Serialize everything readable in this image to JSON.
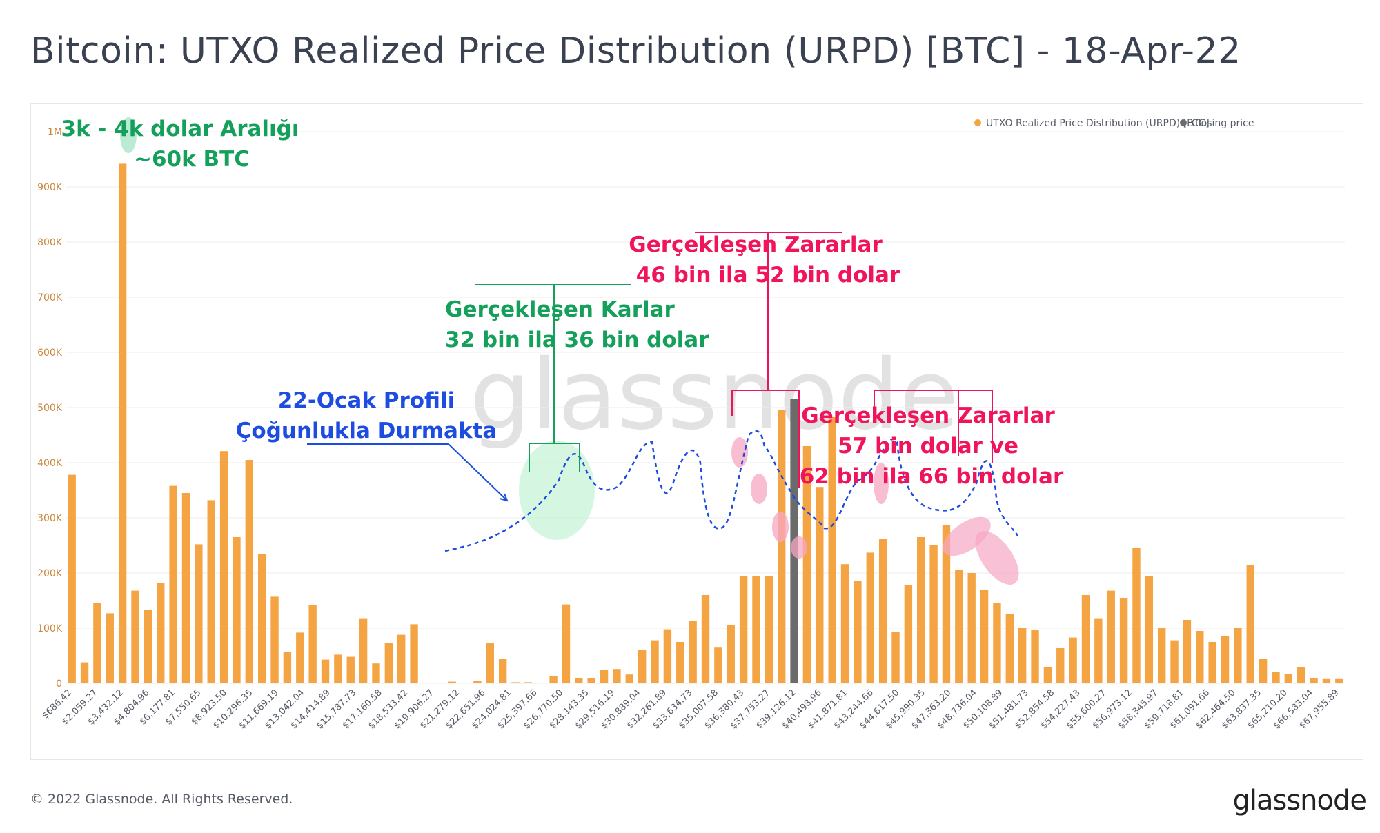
{
  "header": {
    "title": "Bitcoin: UTXO Realized Price Distribution (URPD) [BTC] - 18-Apr-22"
  },
  "footer": {
    "copyright": "© 2022 Glassnode. All Rights Reserved.",
    "logo_text": "glassnode"
  },
  "watermark": "glassnode",
  "colors": {
    "bar": "#f5a443",
    "closing": "#6b6b6b",
    "axis_text": "#c9873a",
    "green": "#14a05a",
    "pink": "#f0145a",
    "blue": "#1c4de0",
    "dashed": "#1c4de0"
  },
  "legend": {
    "items": [
      {
        "label": "UTXO Realized Price Distribution (URPD) [BTC]",
        "color": "#f5a443"
      },
      {
        "label": "Closing price",
        "color": "#6b6b6b"
      }
    ]
  },
  "annotations": {
    "a1": {
      "line1": "3k - 4k dolar Aralığı",
      "line2": "~60k BTC"
    },
    "a2": {
      "line1": "Gerçekleşen Karlar",
      "line2": "32 bin ila 36 bin dolar"
    },
    "a3": {
      "line1": "Gerçekleşen Zararlar",
      "line2": "46 bin ila 52 bin dolar"
    },
    "a4": {
      "line1": "Gerçekleşen Zararlar",
      "line2": "57 bin dolar ve",
      "line3": "62 bin ila 66 bin dolar"
    },
    "a5": {
      "line1": "22-Ocak Profili",
      "line2": "Çoğunlukla Durmakta"
    }
  },
  "chart_data": {
    "type": "bar",
    "ylim": [
      0,
      1000000
    ],
    "y_ticks": [
      "0",
      "100K",
      "200K",
      "300K",
      "400K",
      "500K",
      "600K",
      "700K",
      "800K",
      "900K",
      "1M"
    ],
    "x_tick_labels": [
      "$686.42",
      "$2,059.27",
      "$3,432.12",
      "$4,804.96",
      "$6,177.81",
      "$7,550.65",
      "$8,923.50",
      "$10,296.35",
      "$11,669.19",
      "$13,042.04",
      "$14,414.89",
      "$15,787.73",
      "$17,160.58",
      "$18,533.42",
      "$19,906.27",
      "$21,279.12",
      "$22,651.96",
      "$24,024.81",
      "$25,397.66",
      "$26,770.50",
      "$28,143.35",
      "$29,516.19",
      "$30,889.04",
      "$32,261.89",
      "$33,634.73",
      "$35,007.58",
      "$36,380.43",
      "$37,753.27",
      "$39,126.12",
      "$40,498.96",
      "$41,871.81",
      "$43,244.66",
      "$44,617.50",
      "$45,990.35",
      "$47,363.20",
      "$48,736.04",
      "$50,108.89",
      "$51,481.73",
      "$52,854.58",
      "$54,227.43",
      "$55,600.27",
      "$56,973.12",
      "$58,345.97",
      "$59,718.81",
      "$61,091.66",
      "$62,464.50",
      "$63,837.35",
      "$65,210.20",
      "$66,583.04",
      "$67,955.89"
    ],
    "values": [
      378000,
      38000,
      145000,
      127000,
      942000,
      168000,
      133000,
      182000,
      358000,
      345000,
      252000,
      332000,
      421000,
      265000,
      405000,
      235000,
      157000,
      57000,
      92000,
      142000,
      43000,
      52000,
      48000,
      118000,
      36000,
      73000,
      88000,
      107000,
      0,
      0,
      3000,
      0,
      4000,
      73000,
      45000,
      2000,
      2000,
      0,
      13000,
      143000,
      10000,
      10000,
      25000,
      26000,
      16000,
      61000,
      78000,
      98000,
      75000,
      113000,
      160000,
      66000,
      105000,
      195000,
      195000,
      195000,
      496000,
      515000,
      430000,
      356000,
      483000,
      216000,
      185000,
      237000,
      262000,
      93000,
      178000,
      265000,
      250000,
      287000,
      205000,
      200000,
      170000,
      145000,
      125000,
      100000,
      97000,
      30000,
      65000,
      83000,
      160000,
      118000,
      168000,
      155000,
      245000,
      195000,
      100000,
      78000,
      115000,
      95000,
      75000,
      85000,
      100000,
      215000,
      45000,
      20000,
      17000,
      30000,
      10000,
      9000,
      9000
    ],
    "closing_index": 57,
    "series": [
      {
        "name": "UTXO Realized Price Distribution (URPD) [BTC]"
      },
      {
        "name": "Closing price"
      }
    ]
  }
}
